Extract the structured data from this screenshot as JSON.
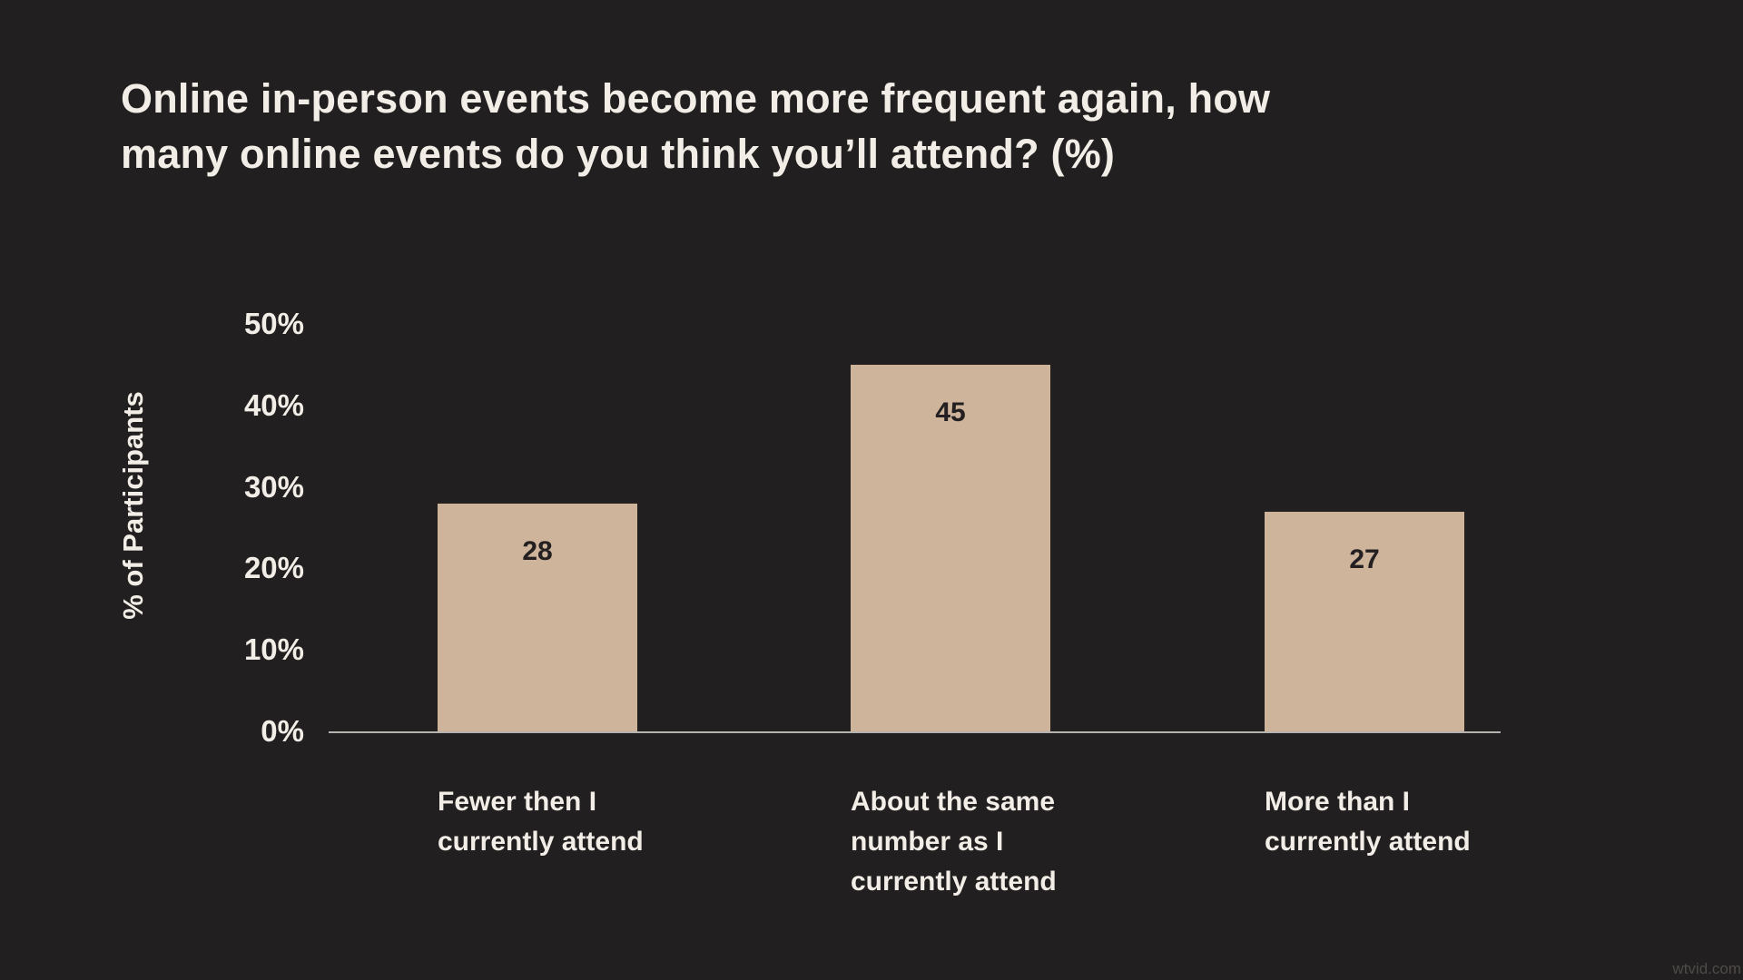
{
  "page": {
    "background": "#211F1F",
    "watermark": "wtvid.com",
    "watermark_color": "#4E4B48"
  },
  "chart_data": {
    "type": "bar",
    "title": "Online in-person events become more frequent again, how\nmany online events do you think you’ll attend? (%)",
    "xlabel": "",
    "ylabel": "% of Participants",
    "categories": [
      "Fewer then I\ncurrently attend",
      "About the same\nnumber as I\ncurrently attend",
      "More than I\ncurrently attend"
    ],
    "values": [
      28,
      45,
      27
    ],
    "value_labels": [
      "28",
      "45",
      "27"
    ],
    "ylim": [
      0,
      50
    ],
    "ytick_step": 10,
    "yticks": [
      "0%",
      "10%",
      "20%",
      "30%",
      "40%",
      "50%"
    ],
    "grid": false,
    "legend": null,
    "colors": {
      "background": "#211F1F",
      "bar": "#CDB49B",
      "text": "#F2EDE6",
      "value_label": "#242021",
      "axis_line": "#B5B3B0"
    }
  }
}
